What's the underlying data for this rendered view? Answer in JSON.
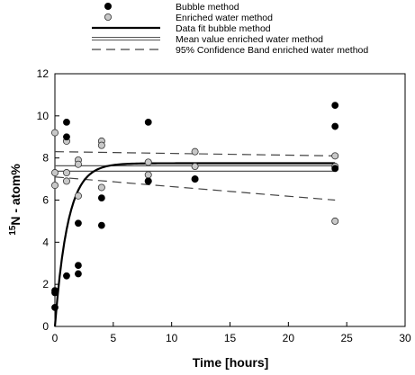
{
  "chart_data": {
    "type": "scatter",
    "xlabel": "Time [hours]",
    "ylabel_sup": "15",
    "ylabel_main": "N - atom%",
    "xlim": [
      0,
      30
    ],
    "ylim": [
      0,
      12
    ],
    "xticks": [
      0,
      5,
      10,
      15,
      20,
      25,
      30
    ],
    "yticks": [
      0,
      2,
      4,
      6,
      8,
      10,
      12
    ],
    "grid": false,
    "legend_placement": "top",
    "legend": [
      {
        "label": "Bubble method",
        "kind": "marker",
        "color": "#000000"
      },
      {
        "label": "Enriched water method",
        "kind": "marker",
        "color": "#c8c8c8"
      },
      {
        "label": "Data fit bubble method",
        "kind": "line-thick"
      },
      {
        "label": "Mean value enriched water method",
        "kind": "line-double"
      },
      {
        "label": "95% Confidence Band enriched water method",
        "kind": "line-dashed"
      }
    ],
    "series": [
      {
        "name": "Bubble method",
        "marker": "filled-circle",
        "color": "#000000",
        "points": [
          [
            0,
            0.9
          ],
          [
            0,
            1.6
          ],
          [
            0,
            1.7
          ],
          [
            1,
            9.7
          ],
          [
            1,
            9.0
          ],
          [
            1,
            2.4
          ],
          [
            2,
            4.9
          ],
          [
            2,
            2.9
          ],
          [
            2,
            2.5
          ],
          [
            4,
            6.1
          ],
          [
            4,
            4.8
          ],
          [
            8,
            9.7
          ],
          [
            8,
            6.9
          ],
          [
            12,
            7.0
          ],
          [
            24,
            10.5
          ],
          [
            24,
            9.5
          ],
          [
            24,
            7.5
          ]
        ]
      },
      {
        "name": "Enriched water method",
        "marker": "open-circle",
        "color": "#c8c8c8",
        "points": [
          [
            0,
            9.2
          ],
          [
            0,
            7.3
          ],
          [
            0,
            6.7
          ],
          [
            1,
            8.8
          ],
          [
            1,
            7.3
          ],
          [
            1,
            6.9
          ],
          [
            2,
            7.9
          ],
          [
            2,
            7.7
          ],
          [
            2,
            6.2
          ],
          [
            4,
            8.8
          ],
          [
            4,
            8.6
          ],
          [
            4,
            6.6
          ],
          [
            8,
            7.8
          ],
          [
            8,
            7.2
          ],
          [
            8,
            6.9
          ],
          [
            12,
            8.3
          ],
          [
            12,
            7.6
          ],
          [
            12,
            7.0
          ],
          [
            24,
            8.1
          ],
          [
            24,
            7.6
          ],
          [
            24,
            5.0
          ]
        ]
      },
      {
        "name": "Data fit bubble method",
        "type": "curve",
        "model": "exponential rise to max",
        "asymptote": 7.75,
        "rate": 0.9,
        "x_range": [
          0,
          24
        ]
      },
      {
        "name": "Mean value enriched water method",
        "type": "hline",
        "y": 7.5,
        "x_range": [
          0,
          24
        ]
      },
      {
        "name": "95% Confidence Band enriched water method",
        "type": "band",
        "upper": [
          [
            0,
            8.3
          ],
          [
            24,
            8.1
          ]
        ],
        "lower": [
          [
            0,
            7.1
          ],
          [
            24,
            6.0
          ]
        ]
      }
    ]
  }
}
